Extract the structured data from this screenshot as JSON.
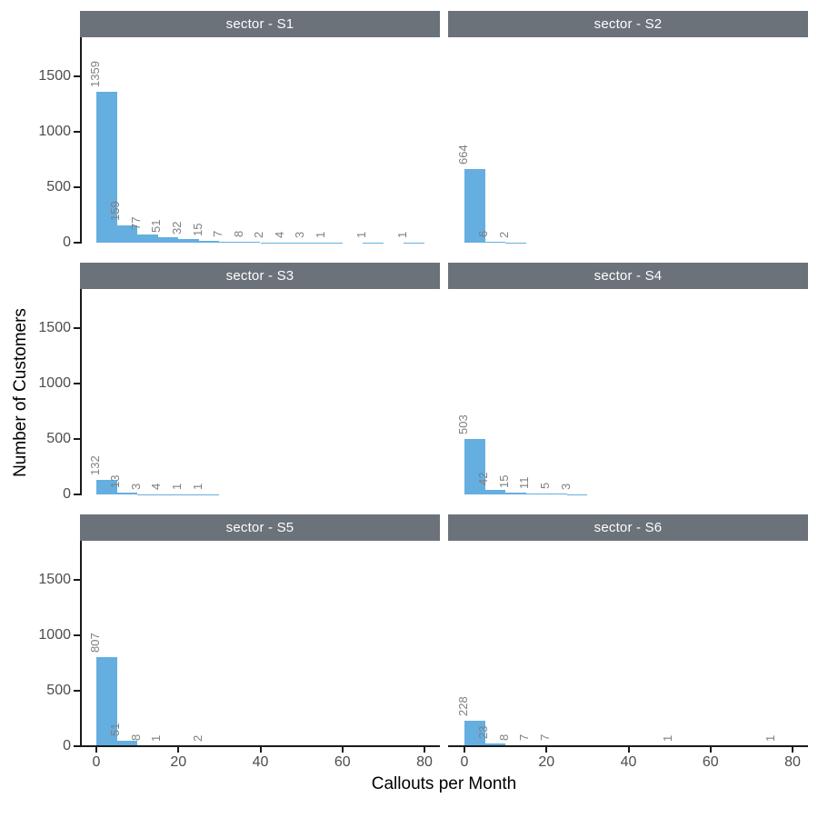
{
  "figure": {
    "colors": {
      "bar": "#65aee0",
      "strip_bg": "#6b727a",
      "strip_text": "#ffffff",
      "axis_line": "#1a1a1a",
      "tick_label": "#4d4d4d",
      "bar_label": "#7f7f7f"
    }
  },
  "chart_data": {
    "type": "bar",
    "subtype": "faceted-histogram",
    "x_axis_title": "Callouts per Month",
    "y_axis_title": "Number of Customers",
    "binwidth": 5,
    "x_ticks": [
      0,
      20,
      40,
      60,
      80
    ],
    "y_ticks": [
      0,
      500,
      1000,
      1500
    ],
    "x_range": [
      -4,
      84
    ],
    "y_range": [
      0,
      1852
    ],
    "grid": "off",
    "legend": "none",
    "facets": [
      {
        "label": "sector - S1",
        "bars": [
          [
            0,
            1359
          ],
          [
            5,
            159
          ],
          [
            10,
            77
          ],
          [
            15,
            51
          ],
          [
            20,
            32
          ],
          [
            25,
            15
          ],
          [
            30,
            7
          ],
          [
            35,
            8
          ],
          [
            40,
            2
          ],
          [
            45,
            4
          ],
          [
            50,
            3
          ],
          [
            55,
            1
          ],
          [
            65,
            1
          ],
          [
            75,
            1
          ]
        ]
      },
      {
        "label": "sector - S2",
        "bars": [
          [
            0,
            664
          ],
          [
            5,
            6
          ],
          [
            10,
            2
          ]
        ]
      },
      {
        "label": "sector - S3",
        "bars": [
          [
            0,
            132
          ],
          [
            5,
            13
          ],
          [
            10,
            3
          ],
          [
            15,
            4
          ],
          [
            20,
            1
          ],
          [
            25,
            1
          ]
        ]
      },
      {
        "label": "sector - S4",
        "bars": [
          [
            0,
            503
          ],
          [
            5,
            42
          ],
          [
            10,
            15
          ],
          [
            15,
            11
          ],
          [
            20,
            5
          ],
          [
            25,
            3
          ]
        ]
      },
      {
        "label": "sector - S5",
        "bars": [
          [
            0,
            807
          ],
          [
            5,
            51
          ],
          [
            10,
            8
          ],
          [
            15,
            1
          ],
          [
            25,
            2
          ]
        ]
      },
      {
        "label": "sector - S6",
        "bars": [
          [
            0,
            228
          ],
          [
            5,
            23
          ],
          [
            10,
            8
          ],
          [
            15,
            7
          ],
          [
            20,
            7
          ],
          [
            50,
            1
          ],
          [
            75,
            1
          ]
        ]
      }
    ]
  }
}
